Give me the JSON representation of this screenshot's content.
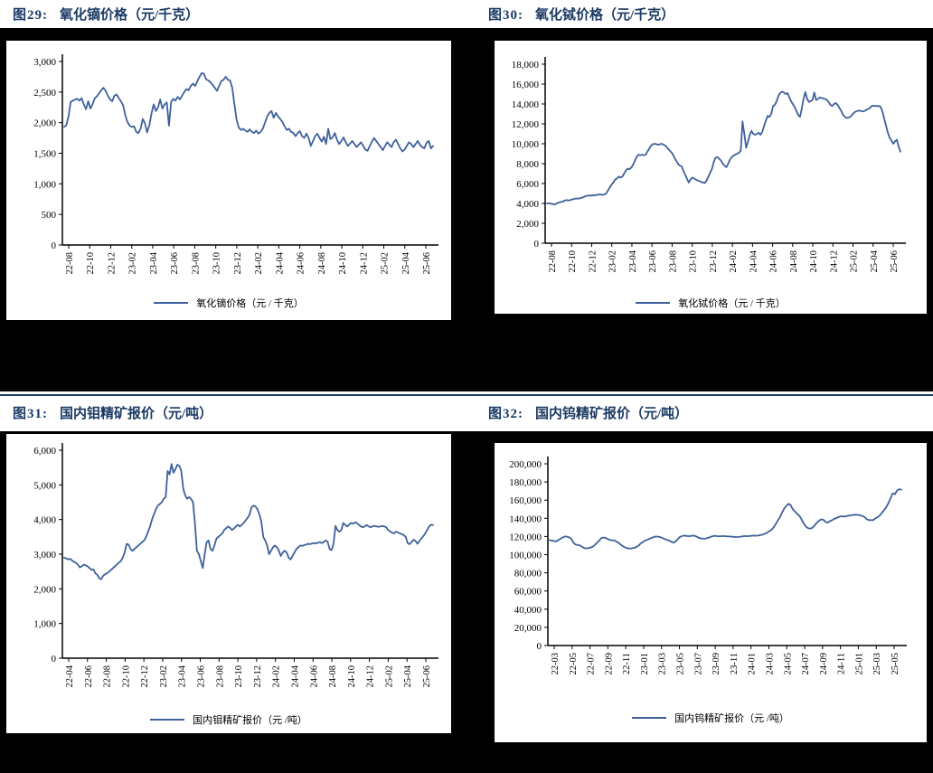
{
  "colors": {
    "page_background": "#000000",
    "panel_background": "#ffffff",
    "title_navy": "#1a3a63",
    "line": "#3e619b",
    "axis": "#000000"
  },
  "chart_data": [
    {
      "type": "line",
      "fig_label": "图29:",
      "title": "氧化镝价格（元/千克）",
      "legend": "氧化镝价格（元 / 千克）",
      "ylim": [
        0,
        3000
      ],
      "grid": false,
      "legend_position": "bottom",
      "y_ticks": [
        "0",
        "500",
        "1,000",
        "1,500",
        "2,000",
        "2,500",
        "3,000"
      ],
      "x_ticks": [
        "22-08",
        "22-10",
        "22-12",
        "23-02",
        "23-04",
        "23-06",
        "23-08",
        "23-10",
        "23-12",
        "24-02",
        "24-04",
        "24-06",
        "24-08",
        "24-10",
        "24-12",
        "25-02",
        "25-04",
        "25-06"
      ],
      "values": [
        1930,
        1960,
        2100,
        2340,
        2360,
        2380,
        2390,
        2360,
        2400,
        2300,
        2220,
        2350,
        2230,
        2300,
        2400,
        2430,
        2480,
        2530,
        2570,
        2520,
        2440,
        2380,
        2350,
        2440,
        2460,
        2400,
        2350,
        2280,
        2120,
        2010,
        1950,
        1930,
        1940,
        1850,
        1830,
        1900,
        2060,
        1990,
        1840,
        1960,
        2150,
        2300,
        2190,
        2250,
        2380,
        2230,
        2300,
        2330,
        1950,
        2340,
        2390,
        2360,
        2420,
        2380,
        2440,
        2500,
        2550,
        2530,
        2600,
        2640,
        2600,
        2680,
        2750,
        2810,
        2800,
        2710,
        2690,
        2660,
        2620,
        2570,
        2520,
        2600,
        2680,
        2700,
        2750,
        2700,
        2690,
        2570,
        2300,
        2050,
        1920,
        1880,
        1900,
        1870,
        1850,
        1890,
        1850,
        1830,
        1870,
        1820,
        1850,
        1900,
        2000,
        2100,
        2160,
        2190,
        2080,
        2160,
        2100,
        2060,
        2010,
        1940,
        1880,
        1900,
        1850,
        1830,
        1780,
        1830,
        1860,
        1780,
        1750,
        1820,
        1750,
        1620,
        1700,
        1780,
        1820,
        1750,
        1690,
        1770,
        1650,
        1900,
        1730,
        1760,
        1830,
        1720,
        1650,
        1700,
        1760,
        1680,
        1620,
        1660,
        1700,
        1650,
        1600,
        1640,
        1680,
        1620,
        1560,
        1540,
        1620,
        1690,
        1750,
        1700,
        1650,
        1600,
        1550,
        1620,
        1680,
        1640,
        1600,
        1680,
        1720,
        1650,
        1580,
        1530,
        1560,
        1620,
        1680,
        1650,
        1600,
        1650,
        1700,
        1640,
        1600,
        1580,
        1670,
        1700,
        1580,
        1620
      ]
    },
    {
      "type": "line",
      "fig_label": "图30:",
      "title": "氧化铽价格（元/千克）",
      "legend": "氧化铽价格（元 / 千克）",
      "ylim": [
        0,
        18000
      ],
      "grid": false,
      "legend_position": "bottom",
      "y_ticks": [
        "0",
        "2,000",
        "4,000",
        "6,000",
        "8,000",
        "10,000",
        "12,000",
        "14,000",
        "16,000",
        "18,000"
      ],
      "x_ticks": [
        "22-08",
        "22-10",
        "22-12",
        "23-02",
        "23-04",
        "23-06",
        "23-08",
        "23-10",
        "23-12",
        "24-02",
        "24-04",
        "24-06",
        "24-08",
        "24-10",
        "24-12",
        "25-02",
        "25-04",
        "25-06"
      ],
      "values": [
        4000,
        4000,
        3980,
        3950,
        3900,
        3950,
        4050,
        4100,
        4150,
        4200,
        4300,
        4350,
        4300,
        4350,
        4400,
        4450,
        4500,
        4480,
        4500,
        4550,
        4600,
        4700,
        4750,
        4800,
        4780,
        4800,
        4800,
        4850,
        4850,
        4900,
        4900,
        4850,
        4900,
        5000,
        5300,
        5600,
        5900,
        6100,
        6400,
        6500,
        6700,
        6600,
        6700,
        7000,
        7300,
        7500,
        7450,
        7600,
        7900,
        8300,
        8700,
        8900,
        8850,
        8900,
        8850,
        8900,
        9200,
        9500,
        9800,
        9950,
        10000,
        9950,
        9900,
        9950,
        10000,
        9900,
        9800,
        9600,
        9400,
        9200,
        9000,
        8600,
        8300,
        8000,
        7800,
        7750,
        7300,
        6900,
        6500,
        6100,
        6400,
        6600,
        6500,
        6400,
        6300,
        6250,
        6150,
        6100,
        6050,
        6300,
        6700,
        7100,
        7500,
        8200,
        8600,
        8650,
        8500,
        8300,
        8000,
        7800,
        7650,
        8000,
        8400,
        8650,
        8800,
        8900,
        9000,
        9100,
        9300,
        12250,
        11000,
        9600,
        10200,
        10900,
        11300,
        11000,
        10900,
        11000,
        11100,
        10900,
        11200,
        11800,
        12300,
        12800,
        12700,
        13000,
        13800,
        13900,
        14300,
        14800,
        15100,
        15250,
        15150,
        15000,
        15100,
        14700,
        14300,
        14000,
        13700,
        13300,
        12900,
        12700,
        13500,
        14500,
        15200,
        14500,
        14200,
        14300,
        14400,
        15150,
        14400,
        14500,
        14650,
        14600,
        14550,
        14500,
        14400,
        14200,
        13900,
        13800,
        14000,
        14100,
        13900,
        13600,
        13300,
        12900,
        12700,
        12600,
        12620,
        12700,
        12900,
        13100,
        13250,
        13300,
        13350,
        13300,
        13250,
        13300,
        13400,
        13500,
        13600,
        13800,
        13820,
        13800,
        13810,
        13790,
        13700,
        13200,
        12500,
        11800,
        11100,
        10600,
        10300,
        10000,
        10250,
        10400,
        9700,
        9200
      ]
    },
    {
      "type": "line",
      "fig_label": "图31:",
      "title": "国内钼精矿报价（元/吨）",
      "legend": "国内钼精矿报价（元 /吨）",
      "ylim": [
        0,
        6000
      ],
      "grid": false,
      "legend_position": "bottom",
      "y_ticks": [
        "0",
        "1,000",
        "2,000",
        "3,000",
        "4,000",
        "5,000",
        "6,000"
      ],
      "x_ticks": [
        "22-04",
        "22-06",
        "22-08",
        "22-10",
        "22-12",
        "23-02",
        "23-04",
        "23-06",
        "23-08",
        "23-10",
        "23-12",
        "24-02",
        "24-04",
        "24-06",
        "24-08",
        "24-10",
        "24-12",
        "25-02",
        "25-04",
        "25-06"
      ],
      "values": [
        2900,
        2880,
        2850,
        2870,
        2820,
        2780,
        2750,
        2700,
        2620,
        2650,
        2700,
        2680,
        2650,
        2600,
        2550,
        2560,
        2450,
        2400,
        2300,
        2280,
        2380,
        2420,
        2450,
        2500,
        2550,
        2600,
        2650,
        2700,
        2760,
        2800,
        2900,
        3050,
        3300,
        3280,
        3150,
        3100,
        3150,
        3200,
        3250,
        3300,
        3350,
        3400,
        3500,
        3650,
        3800,
        4000,
        4150,
        4300,
        4400,
        4450,
        4500,
        4600,
        4650,
        5400,
        5300,
        5600,
        5350,
        5450,
        5580,
        5550,
        5400,
        4900,
        4700,
        4600,
        4650,
        4600,
        4500,
        3900,
        3100,
        3000,
        2800,
        2600,
        3000,
        3350,
        3400,
        3150,
        3100,
        3250,
        3450,
        3500,
        3550,
        3600,
        3700,
        3750,
        3800,
        3760,
        3700,
        3740,
        3800,
        3850,
        3800,
        3850,
        3900,
        3980,
        4050,
        4150,
        4350,
        4400,
        4380,
        4300,
        4150,
        3950,
        3500,
        3400,
        3250,
        3000,
        3100,
        3200,
        3250,
        3200,
        3100,
        2950,
        3050,
        3100,
        3050,
        2900,
        2850,
        2950,
        3050,
        3150,
        3200,
        3250,
        3240,
        3260,
        3280,
        3300,
        3290,
        3310,
        3320,
        3310,
        3330,
        3350,
        3320,
        3350,
        3400,
        3360,
        3150,
        3120,
        3300,
        3820,
        3700,
        3650,
        3700,
        3900,
        3850,
        3800,
        3850,
        3900,
        3880,
        3920,
        3900,
        3850,
        3800,
        3780,
        3800,
        3840,
        3800,
        3780,
        3800,
        3820,
        3800,
        3790,
        3800,
        3810,
        3800,
        3780,
        3700,
        3660,
        3620,
        3600,
        3650,
        3630,
        3600,
        3580,
        3550,
        3500,
        3320,
        3290,
        3350,
        3420,
        3380,
        3300,
        3380,
        3450,
        3520,
        3600,
        3700,
        3800,
        3850,
        3840
      ]
    },
    {
      "type": "line",
      "fig_label": "图32:",
      "title": "国内钨精矿报价（元/吨）",
      "legend": "国内钨精矿报价（元 /吨）",
      "ylim": [
        0,
        200000
      ],
      "grid": false,
      "legend_position": "bottom",
      "y_ticks": [
        "0",
        "20,000",
        "40,000",
        "60,000",
        "80,000",
        "100,000",
        "120,000",
        "140,000",
        "160,000",
        "180,000",
        "200,000"
      ],
      "x_ticks": [
        "22-03",
        "22-05",
        "22-07",
        "22-09",
        "22-11",
        "23-01",
        "23-03",
        "23-05",
        "23-07",
        "23-09",
        "23-11",
        "24-01",
        "24-03",
        "24-05",
        "24-07",
        "24-09",
        "24-11",
        "25-01",
        "25-03",
        "25-05"
      ],
      "values": [
        116000,
        115500,
        115000,
        114500,
        116000,
        117500,
        119000,
        120000,
        119800,
        119000,
        117500,
        113000,
        111000,
        110500,
        110000,
        108500,
        107200,
        107000,
        107300,
        108000,
        109000,
        111000,
        113500,
        116000,
        118500,
        118800,
        118200,
        117000,
        116000,
        115800,
        115500,
        114000,
        112500,
        110500,
        109000,
        107800,
        107000,
        106800,
        107000,
        107500,
        108500,
        110000,
        112500,
        114000,
        115500,
        116500,
        117500,
        118500,
        119500,
        120000,
        119800,
        119200,
        118200,
        117200,
        116200,
        115500,
        114200,
        113200,
        114500,
        117000,
        119500,
        120500,
        121000,
        120600,
        120300,
        120600,
        121000,
        120600,
        119500,
        118200,
        117800,
        117500,
        117800,
        118500,
        119500,
        120300,
        120800,
        120400,
        120200,
        120300,
        120500,
        120300,
        120100,
        120000,
        119800,
        119600,
        119400,
        119500,
        119800,
        120200,
        120500,
        120300,
        120500,
        120800,
        121000,
        120800,
        121000,
        121500,
        122000,
        123000,
        124000,
        125500,
        127000,
        129500,
        133000,
        137000,
        141000,
        146000,
        150500,
        153500,
        156000,
        154500,
        150000,
        147500,
        145000,
        143000,
        139000,
        134500,
        131000,
        129300,
        128700,
        129500,
        132000,
        135000,
        137300,
        138800,
        138500,
        136200,
        135200,
        136800,
        137800,
        139300,
        140300,
        141300,
        142300,
        142100,
        142000,
        142500,
        143000,
        143400,
        143800,
        144000,
        143800,
        143400,
        142500,
        141500,
        139000,
        138100,
        137900,
        138100,
        139800,
        141300,
        143000,
        146000,
        149000,
        152000,
        156500,
        162000,
        167500,
        166500,
        170500,
        172000,
        171500
      ]
    }
  ]
}
